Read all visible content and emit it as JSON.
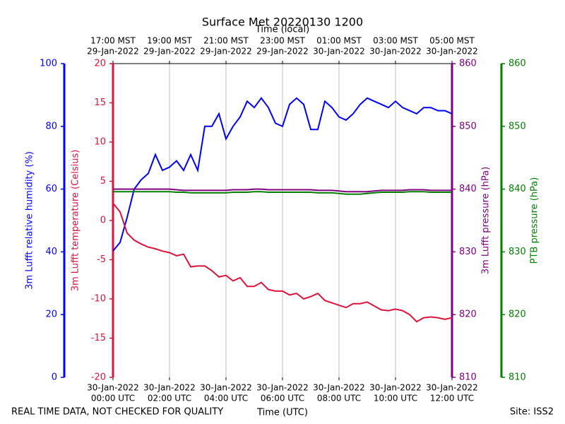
{
  "chart_data": {
    "type": "line",
    "title": "Surface Met 20220130 1200",
    "x2label": "Time (local)",
    "xlabel": "Time (UTC)",
    "footer_left": "REAL TIME DATA, NOT CHECKED FOR QUALITY",
    "footer_right": "Site: ISS2",
    "xlim": [
      0,
      12
    ],
    "xticks": [
      {
        "value": 0,
        "date": "30-Jan-2022",
        "label": "00:00 UTC"
      },
      {
        "value": 2,
        "date": "30-Jan-2022",
        "label": "02:00 UTC"
      },
      {
        "value": 4,
        "date": "30-Jan-2022",
        "label": "04:00 UTC"
      },
      {
        "value": 6,
        "date": "30-Jan-2022",
        "label": "06:00 UTC"
      },
      {
        "value": 8,
        "date": "30-Jan-2022",
        "label": "08:00 UTC"
      },
      {
        "value": 10,
        "date": "30-Jan-2022",
        "label": "10:00 UTC"
      },
      {
        "value": 12,
        "date": "30-Jan-2022",
        "label": "12:00 UTC"
      }
    ],
    "x2ticks": [
      {
        "value": 0,
        "label": "17:00 MST",
        "date": "29-Jan-2022"
      },
      {
        "value": 2,
        "label": "19:00 MST",
        "date": "29-Jan-2022"
      },
      {
        "value": 4,
        "label": "21:00 MST",
        "date": "29-Jan-2022"
      },
      {
        "value": 6,
        "label": "23:00 MST",
        "date": "29-Jan-2022"
      },
      {
        "value": 8,
        "label": "01:00 MST",
        "date": "30-Jan-2022"
      },
      {
        "value": 10,
        "label": "03:00 MST",
        "date": "30-Jan-2022"
      },
      {
        "value": 12,
        "label": "05:00 MST",
        "date": "30-Jan-2022"
      }
    ],
    "grid": true,
    "ylabel": "3m Lufft relative humidity (%)",
    "ycolor": "#0000ff",
    "ylim": [
      0,
      100
    ],
    "yticks": [
      0,
      20,
      40,
      60,
      80,
      100
    ],
    "y2label": "3m Lufft temperature (Celsius)",
    "y2color": "#dc143c",
    "y2lim": [
      -20,
      20
    ],
    "y2ticks": [
      -20,
      -15,
      -10,
      -5,
      0,
      5,
      10,
      15,
      20
    ],
    "y3label": "3m Lufft pressure (hPa)",
    "y3color": "#800080",
    "y3lim": [
      810,
      860
    ],
    "y3ticks": [
      810,
      820,
      830,
      840,
      850,
      860
    ],
    "y4label": "PTB pressure (hPa)",
    "y4color": "#008000",
    "y4lim": [
      810,
      860
    ],
    "y4ticks": [
      810,
      820,
      830,
      840,
      850,
      860
    ],
    "x": [
      0,
      0.25,
      0.5,
      0.75,
      1,
      1.25,
      1.5,
      1.75,
      2,
      2.25,
      2.5,
      2.75,
      3,
      3.25,
      3.5,
      3.75,
      4,
      4.25,
      4.5,
      4.75,
      5,
      5.25,
      5.5,
      5.75,
      6,
      6.25,
      6.5,
      6.75,
      7,
      7.25,
      7.5,
      7.75,
      8,
      8.25,
      8.5,
      8.75,
      9,
      9.25,
      9.5,
      9.75,
      10,
      10.25,
      10.5,
      10.75,
      11,
      11.25,
      11.5,
      11.75,
      12
    ],
    "series": [
      {
        "axis": "y",
        "color": "#0000ff",
        "values": [
          40.3,
          43,
          51,
          60,
          63,
          65,
          71,
          66,
          67,
          69,
          66,
          71,
          66,
          80,
          80,
          84,
          76,
          80,
          83,
          88,
          86,
          89,
          86,
          81,
          80,
          87,
          89,
          87,
          79,
          79,
          88,
          86,
          83,
          82,
          84,
          87,
          89,
          88,
          87,
          86,
          88,
          86,
          85,
          84,
          86,
          86,
          85,
          85,
          84
        ]
      },
      {
        "axis": "y2",
        "color": "#dc143c",
        "values": [
          2.2,
          1.1,
          -1.6,
          -2.5,
          -3,
          -3.4,
          -3.6,
          -3.9,
          -4.1,
          -4.5,
          -4.3,
          -5.9,
          -5.8,
          -5.8,
          -6.4,
          -7.2,
          -7,
          -7.7,
          -7.3,
          -8.4,
          -8.4,
          -7.9,
          -8.8,
          -9,
          -9,
          -9.5,
          -9.3,
          -10,
          -9.7,
          -9.3,
          -10.2,
          -10.5,
          -10.8,
          -11.1,
          -10.6,
          -10.6,
          -10.4,
          -10.9,
          -11.4,
          -11.5,
          -11.3,
          -11.5,
          -12,
          -12.9,
          -12.4,
          -12.3,
          -12.4,
          -12.6,
          -12.4
        ]
      },
      {
        "axis": "y3",
        "color": "#800080",
        "values": [
          840,
          840,
          840,
          840,
          840,
          840,
          840,
          840,
          840,
          839.9,
          839.8,
          839.8,
          839.8,
          839.8,
          839.8,
          839.8,
          839.8,
          839.9,
          839.9,
          839.9,
          840,
          840,
          839.9,
          839.9,
          839.9,
          839.9,
          839.9,
          839.9,
          839.9,
          839.8,
          839.8,
          839.8,
          839.7,
          839.6,
          839.6,
          839.6,
          839.6,
          839.7,
          839.8,
          839.8,
          839.8,
          839.8,
          839.9,
          839.9,
          839.9,
          839.8,
          839.8,
          839.8,
          839.8
        ]
      },
      {
        "axis": "y4",
        "color": "#008000",
        "values": [
          839.6,
          839.6,
          839.6,
          839.6,
          839.6,
          839.6,
          839.6,
          839.6,
          839.6,
          839.5,
          839.5,
          839.4,
          839.4,
          839.4,
          839.4,
          839.4,
          839.4,
          839.5,
          839.5,
          839.5,
          839.6,
          839.6,
          839.5,
          839.5,
          839.5,
          839.5,
          839.5,
          839.5,
          839.5,
          839.4,
          839.4,
          839.4,
          839.3,
          839.2,
          839.2,
          839.2,
          839.3,
          839.4,
          839.5,
          839.5,
          839.5,
          839.5,
          839.6,
          839.6,
          839.6,
          839.5,
          839.5,
          839.5,
          839.5
        ]
      }
    ]
  }
}
